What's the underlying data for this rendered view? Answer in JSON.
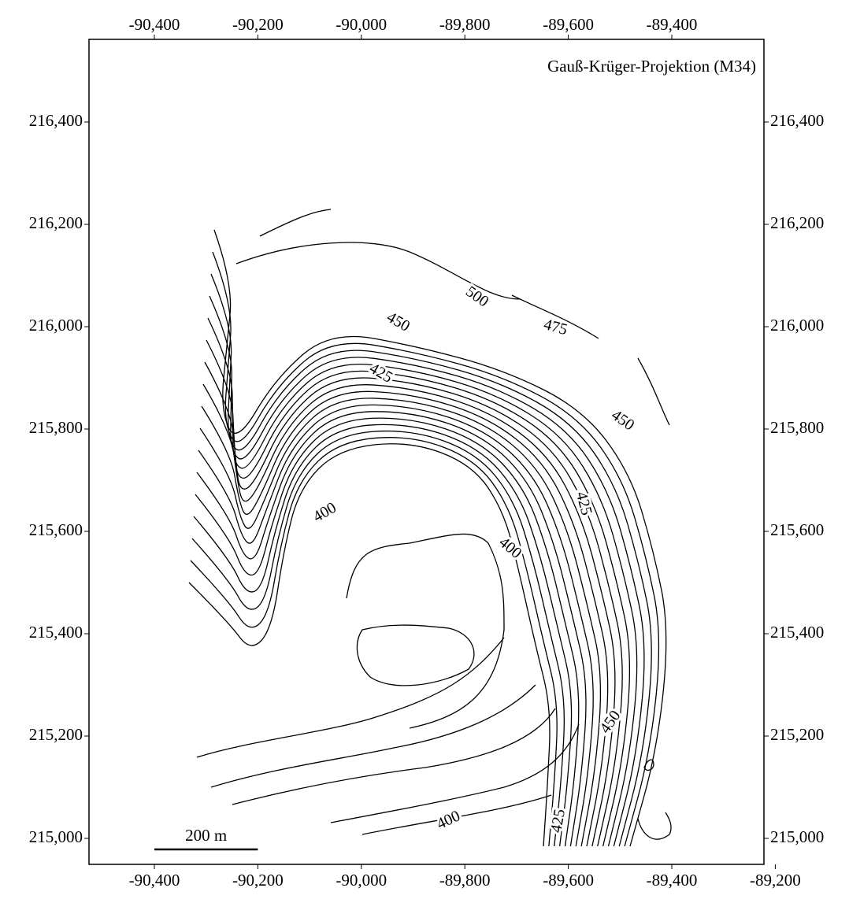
{
  "map": {
    "title": "Gauß-Krüger-Projektion (M34)",
    "xticks_top": [
      {
        "value": -90400,
        "label": "-90,400"
      },
      {
        "value": -90200,
        "label": "-90,200"
      },
      {
        "value": -90000,
        "label": "-90,000"
      },
      {
        "value": -89800,
        "label": "-89,800"
      },
      {
        "value": -89600,
        "label": "-89,600"
      },
      {
        "value": -89400,
        "label": "-89,400"
      }
    ],
    "xticks_bottom": [
      {
        "value": -90400,
        "label": "-90,400"
      },
      {
        "value": -90200,
        "label": "-90,200"
      },
      {
        "value": -90000,
        "label": "-90,000"
      },
      {
        "value": -89800,
        "label": "-89,800"
      },
      {
        "value": -89600,
        "label": "-89,600"
      },
      {
        "value": -89400,
        "label": "-89,400"
      },
      {
        "value": -89200,
        "label": "-89,200"
      }
    ],
    "yticks": [
      {
        "value": 216400,
        "label": "216,400"
      },
      {
        "value": 216200,
        "label": "216,200"
      },
      {
        "value": 216000,
        "label": "216,000"
      },
      {
        "value": 215800,
        "label": "215,800"
      },
      {
        "value": 215600,
        "label": "215,600"
      },
      {
        "value": 215400,
        "label": "215,400"
      },
      {
        "value": 215200,
        "label": "215,200"
      },
      {
        "value": 215000,
        "label": "215,000"
      }
    ],
    "scale_bar": {
      "label": "200 m",
      "length": 200
    },
    "contour_labels": [
      500,
      475,
      450,
      425,
      450,
      425,
      400,
      400,
      450,
      425,
      400
    ]
  }
}
